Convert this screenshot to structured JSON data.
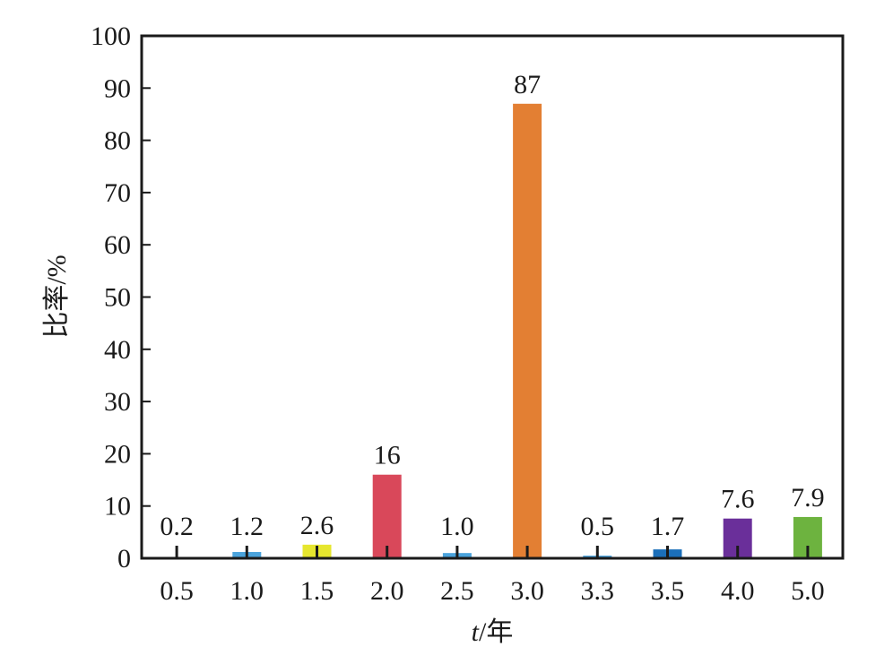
{
  "chart_data": {
    "type": "bar",
    "categories": [
      "0.5",
      "1.0",
      "1.5",
      "2.0",
      "2.5",
      "3.0",
      "3.3",
      "3.5",
      "4.0",
      "5.0"
    ],
    "values": [
      0.2,
      1.2,
      2.6,
      16,
      1.0,
      87,
      0.5,
      1.7,
      7.6,
      7.9
    ],
    "value_labels": [
      "0.2",
      "1.2",
      "2.6",
      "16",
      "1.0",
      "87",
      "0.5",
      "1.7",
      "7.6",
      "7.9"
    ],
    "colors": [
      "#4aa3dc",
      "#4aa3dc",
      "#e6e62e",
      "#d9485a",
      "#4aa3dc",
      "#e37f33",
      "#4aa3dc",
      "#1b6fba",
      "#6a2f9a",
      "#6db33f"
    ],
    "xlabel": "t/年",
    "xlabel_italic": "t",
    "xlabel_rest": "/年",
    "ylabel": "比率/%",
    "ylim": [
      0,
      100
    ],
    "yticks": [
      0,
      10,
      20,
      30,
      40,
      50,
      60,
      70,
      80,
      90,
      100
    ],
    "grid": false,
    "error_bars": true
  }
}
